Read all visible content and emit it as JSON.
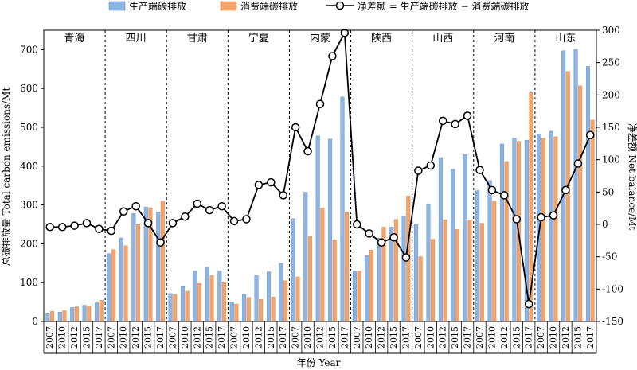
{
  "chart_data": {
    "type": "bar+line",
    "legend": {
      "production": "生产端碳排放",
      "consumption": "消费端碳排放",
      "net": "净差额 = 生产端碳排放 − 消费端碳排放"
    },
    "ylabel_left": "总碳排放量 Total carbon emissions/Mt",
    "ylabel_right": "净差额 Net balance/Mt",
    "xlabel": "年份 Year",
    "ylim_left": [
      0,
      750
    ],
    "ylim_right": [
      -150,
      300
    ],
    "yticks_left": [
      0,
      100,
      200,
      300,
      400,
      500,
      600,
      700
    ],
    "yticks_right": [
      -150,
      -100,
      -50,
      0,
      50,
      100,
      150,
      200,
      250,
      300
    ],
    "years": [
      "2007",
      "2010",
      "2012",
      "2015",
      "2017"
    ],
    "colors": {
      "production": "#8db4e2",
      "consumption": "#f4a46a",
      "net": "#000000"
    },
    "provinces": [
      {
        "name": "青海",
        "production": [
          22,
          24,
          36,
          42,
          48
        ],
        "consumption": [
          26,
          28,
          38,
          40,
          55
        ],
        "net": [
          -4,
          -4,
          -2,
          2,
          -7
        ]
      },
      {
        "name": "四川",
        "production": [
          175,
          215,
          278,
          295,
          282
        ],
        "consumption": [
          185,
          195,
          250,
          293,
          310
        ],
        "net": [
          -10,
          20,
          28,
          2,
          -28
        ]
      },
      {
        "name": "甘肃",
        "production": [
          72,
          90,
          130,
          140,
          130
        ],
        "consumption": [
          70,
          78,
          98,
          118,
          102
        ],
        "net": [
          2,
          12,
          32,
          22,
          28
        ]
      },
      {
        "name": "宁夏",
        "production": [
          50,
          70,
          118,
          128,
          150
        ],
        "consumption": [
          45,
          62,
          57,
          63,
          105
        ],
        "net": [
          5,
          8,
          61,
          65,
          45
        ]
      },
      {
        "name": "内蒙",
        "production": [
          265,
          333,
          478,
          470,
          578
        ],
        "consumption": [
          115,
          220,
          292,
          210,
          282
        ],
        "net": [
          150,
          113,
          186,
          260,
          296
        ]
      },
      {
        "name": "陕西",
        "production": [
          130,
          170,
          215,
          243,
          272
        ],
        "consumption": [
          130,
          184,
          243,
          263,
          323
        ],
        "net": [
          0,
          -14,
          -28,
          -20,
          -51
        ]
      },
      {
        "name": "山西",
        "production": [
          250,
          303,
          422,
          392,
          430
        ],
        "consumption": [
          167,
          212,
          262,
          237,
          262
        ],
        "net": [
          83,
          91,
          160,
          155,
          168
        ]
      },
      {
        "name": "河南",
        "production": [
          337,
          363,
          457,
          472,
          467
        ],
        "consumption": [
          253,
          310,
          412,
          464,
          590
        ],
        "net": [
          84,
          53,
          45,
          8,
          -123
        ]
      },
      {
        "name": "山东",
        "production": [
          483,
          490,
          697,
          701,
          657
        ],
        "consumption": [
          472,
          476,
          644,
          607,
          519
        ],
        "net": [
          11,
          14,
          53,
          94,
          138
        ]
      }
    ]
  }
}
